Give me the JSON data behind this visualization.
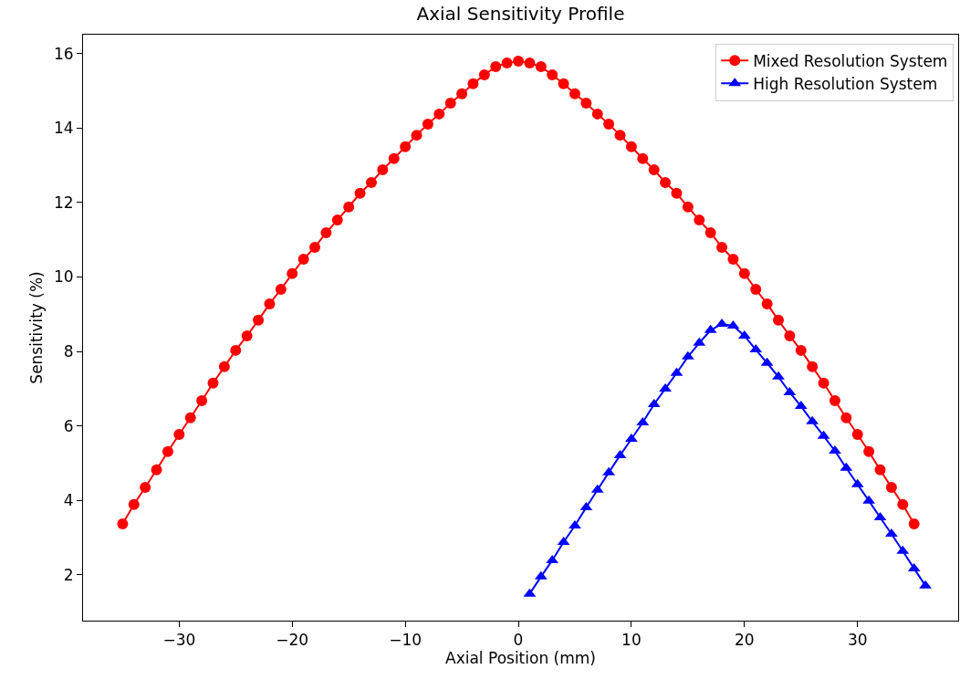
{
  "chart_data": {
    "type": "line",
    "title": "Axial Sensitivity Profile",
    "xlabel": "Axial Position (mm)",
    "ylabel": "Sensitivity (%)",
    "xlim": [
      -38.5,
      38.9
    ],
    "ylim": [
      0.77,
      16.51
    ],
    "xticks": [
      {
        "value": -30,
        "label": "−30"
      },
      {
        "value": -20,
        "label": "−20"
      },
      {
        "value": -10,
        "label": "−10"
      },
      0,
      10,
      20,
      30
    ],
    "yticks": [
      2,
      4,
      6,
      8,
      10,
      12,
      14,
      16
    ],
    "legend": "top right",
    "line_style": "solid",
    "series": [
      {
        "name": "Mixed Resolution System",
        "color": "#ff0000",
        "marker": "circle",
        "x": [
          -35,
          -34,
          -33,
          -32,
          -31,
          -30,
          -29,
          -28,
          -27,
          -26,
          -25,
          -24,
          -23,
          -22,
          -21,
          -20,
          -19,
          -18,
          -17,
          -16,
          -15,
          -14,
          -13,
          -12,
          -11,
          -10,
          -9,
          -8,
          -7,
          -6,
          -5,
          -4,
          -3,
          -2,
          -1,
          0,
          1,
          2,
          3,
          4,
          5,
          6,
          7,
          8,
          9,
          10,
          11,
          12,
          13,
          14,
          15,
          16,
          17,
          18,
          19,
          20,
          21,
          22,
          23,
          24,
          25,
          26,
          27,
          28,
          29,
          30,
          31,
          32,
          33,
          34,
          35
        ],
        "values": [
          3.37,
          3.89,
          4.35,
          4.82,
          5.31,
          5.77,
          6.22,
          6.68,
          7.15,
          7.59,
          8.03,
          8.42,
          8.84,
          9.28,
          9.67,
          10.09,
          10.48,
          10.8,
          11.19,
          11.53,
          11.88,
          12.25,
          12.54,
          12.88,
          13.18,
          13.5,
          13.81,
          14.11,
          14.38,
          14.67,
          14.92,
          15.19,
          15.43,
          15.65,
          15.75,
          15.8,
          15.75,
          15.65,
          15.43,
          15.19,
          14.92,
          14.67,
          14.38,
          14.11,
          13.81,
          13.5,
          13.18,
          12.88,
          12.54,
          12.25,
          11.88,
          11.53,
          11.19,
          10.8,
          10.48,
          10.09,
          9.67,
          9.28,
          8.84,
          8.42,
          8.03,
          7.59,
          7.15,
          6.68,
          6.22,
          5.77,
          5.31,
          4.82,
          4.35,
          3.89,
          3.37
        ]
      },
      {
        "name": "High Resolution System",
        "color": "#0000ff",
        "marker": "triangle",
        "x": [
          1,
          2,
          3,
          4,
          5,
          6,
          7,
          8,
          9,
          10,
          11,
          12,
          13,
          14,
          15,
          16,
          17,
          18,
          19,
          20,
          21,
          22,
          23,
          24,
          25,
          26,
          27,
          28,
          29,
          30,
          31,
          32,
          33,
          34,
          35,
          36
        ],
        "values": [
          1.49,
          1.95,
          2.39,
          2.88,
          3.32,
          3.81,
          4.28,
          4.75,
          5.21,
          5.65,
          6.09,
          6.58,
          7.0,
          7.42,
          7.86,
          8.23,
          8.57,
          8.74,
          8.69,
          8.42,
          8.05,
          7.69,
          7.32,
          6.9,
          6.53,
          6.12,
          5.73,
          5.33,
          4.87,
          4.43,
          3.99,
          3.54,
          3.1,
          2.64,
          2.17,
          1.71
        ]
      }
    ]
  }
}
